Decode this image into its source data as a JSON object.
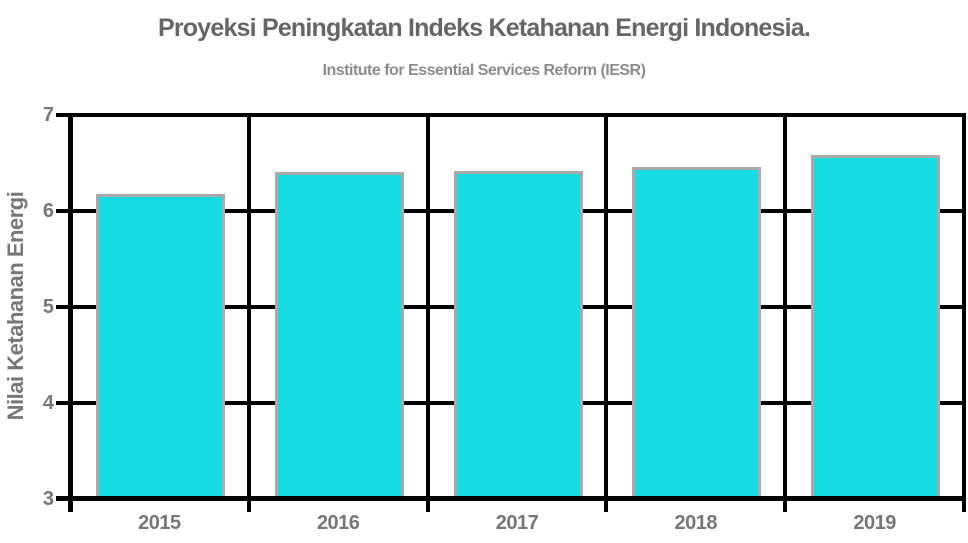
{
  "chart_data": {
    "type": "bar",
    "title": "Proyeksi Peningkatan Indeks Ketahanan Energi Indonesia.",
    "subtitle": "Institute for Essential Services Reform (IESR)",
    "xlabel": "",
    "ylabel": "Nilai Ketahanan Energi",
    "categories": [
      "2015",
      "2016",
      "2017",
      "2018",
      "2019"
    ],
    "values": [
      6.15,
      6.38,
      6.39,
      6.43,
      6.56
    ],
    "ylim": [
      3,
      7
    ],
    "yticks": [
      3,
      4,
      5,
      6,
      7
    ],
    "grid": true,
    "legend_position": "none",
    "colors": {
      "bar_fill": "#17dbe3",
      "bar_border": "#aaaaaa",
      "grid_and_axes": "#000000",
      "title_text": "#666666",
      "subtitle_text": "#8c8c8c",
      "axis_text": "#777777",
      "background": "#ffffff"
    }
  }
}
